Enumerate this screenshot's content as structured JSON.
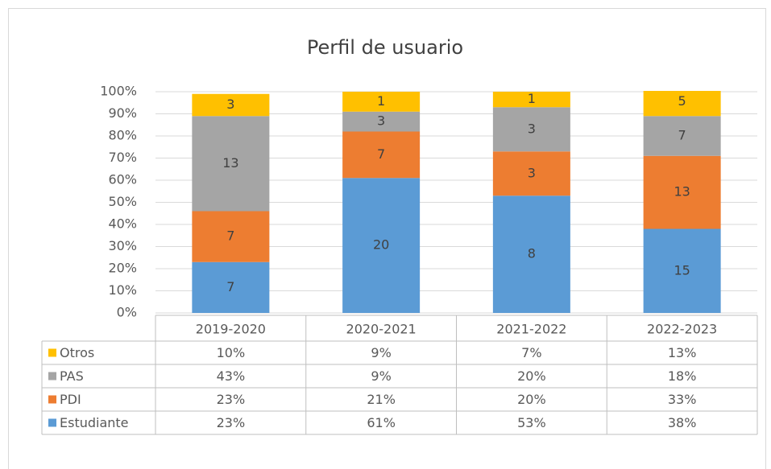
{
  "chart_data": {
    "type": "bar",
    "stacked": true,
    "title": "Perfil de usuario",
    "categories": [
      "2019-2020",
      "2020-2021",
      "2021-2022",
      "2022-2023"
    ],
    "series": [
      {
        "name": "Estudiante",
        "color": "#5b9bd5",
        "values": [
          23,
          61,
          53,
          38
        ],
        "value_labels": [
          "23%",
          "61%",
          "53%",
          "38%"
        ],
        "counts": [
          7,
          20,
          8,
          15
        ]
      },
      {
        "name": "PDI",
        "color": "#ed7d31",
        "values": [
          23,
          21,
          20,
          33
        ],
        "value_labels": [
          "23%",
          "21%",
          "20%",
          "33%"
        ],
        "counts": [
          7,
          7,
          3,
          13
        ]
      },
      {
        "name": "PAS",
        "color": "#a5a5a5",
        "values": [
          43,
          9,
          20,
          18
        ],
        "value_labels": [
          "43%",
          "9%",
          "20%",
          "18%"
        ],
        "counts": [
          13,
          3,
          3,
          7
        ]
      },
      {
        "name": "Otros",
        "color": "#ffc000",
        "values": [
          10,
          9,
          7,
          13
        ],
        "value_labels": [
          "10%",
          "9%",
          "7%",
          "13%"
        ],
        "counts": [
          3,
          1,
          1,
          5
        ]
      }
    ],
    "ylim": [
      0,
      100
    ],
    "yticks": [
      {
        "value": 0,
        "label": "0%"
      },
      {
        "value": 10,
        "label": "10%"
      },
      {
        "value": 20,
        "label": "20%"
      },
      {
        "value": 30,
        "label": "30%"
      },
      {
        "value": 40,
        "label": "40%"
      },
      {
        "value": 50,
        "label": "50%"
      },
      {
        "value": 60,
        "label": "60%"
      },
      {
        "value": 70,
        "label": "70%"
      },
      {
        "value": 80,
        "label": "80%"
      },
      {
        "value": 90,
        "label": "90%"
      },
      {
        "value": 100,
        "label": "100%"
      }
    ],
    "grid": true
  }
}
